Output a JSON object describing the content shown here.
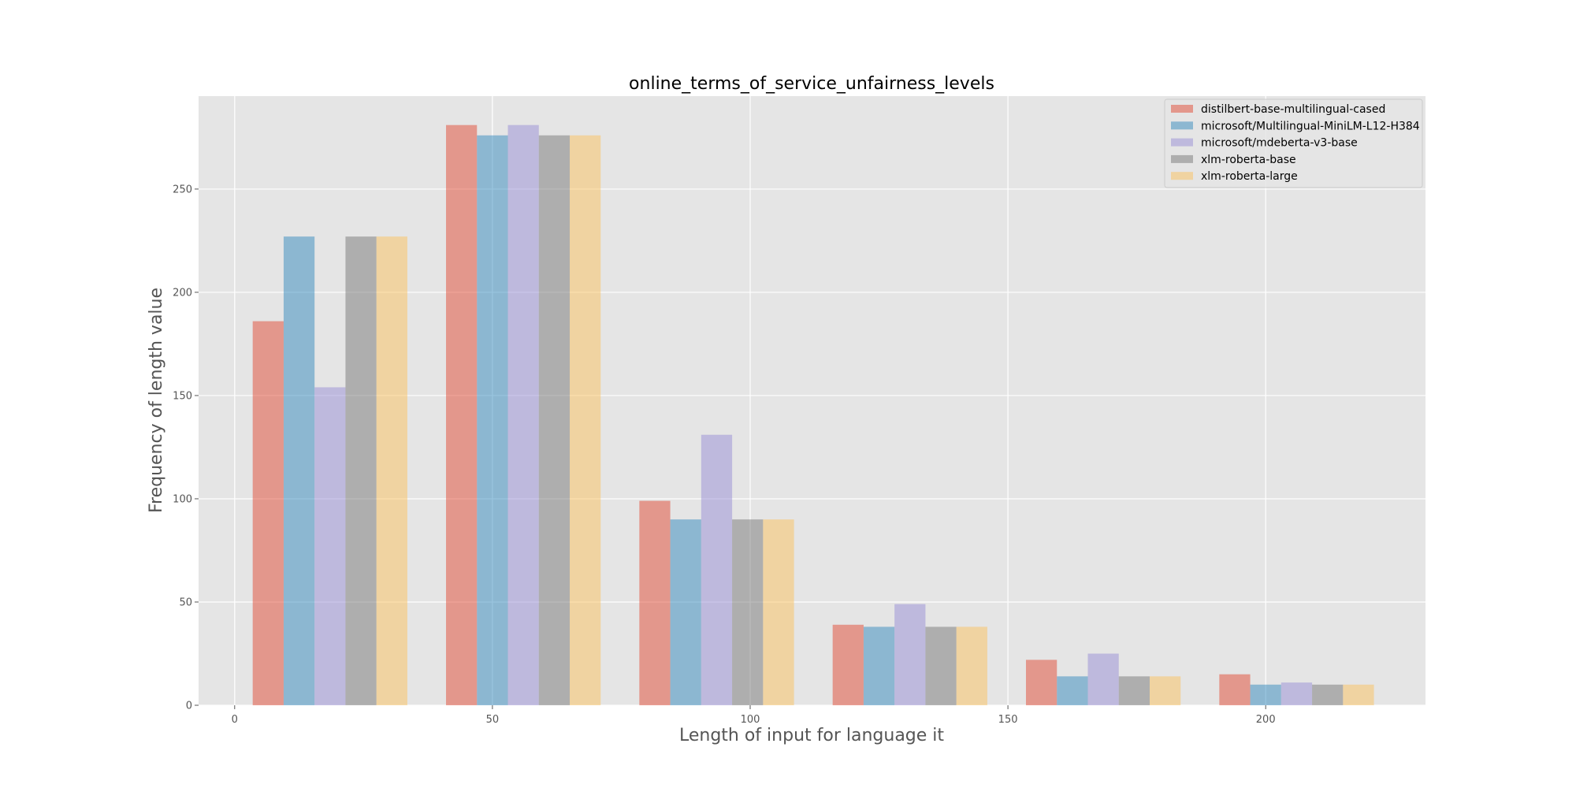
{
  "chart_data": {
    "type": "bar",
    "title": "online_terms_of_service_unfairness_levels",
    "xlabel": "Length of input for language it",
    "ylabel": "Frequency of length value",
    "xlim": [
      -7,
      231
    ],
    "ylim": [
      0,
      295
    ],
    "xticks": [
      0,
      50,
      100,
      150,
      200
    ],
    "yticks": [
      0,
      50,
      100,
      150,
      200,
      250
    ],
    "grid": true,
    "legend_position": "top-right",
    "bin_starts": [
      3.5,
      41,
      78.5,
      116,
      153.5,
      191
    ],
    "bin_width": 30,
    "series": [
      {
        "name": "distilbert-base-multilingual-cased",
        "color": "#E24A33",
        "values": [
          186,
          281,
          99,
          39,
          22,
          15
        ]
      },
      {
        "name": "microsoft/Multilingual-MiniLM-L12-H384",
        "color": "#348ABD",
        "values": [
          227,
          276,
          90,
          38,
          14,
          10
        ]
      },
      {
        "name": "microsoft/mdeberta-v3-base",
        "color": "#988ED5",
        "values": [
          154,
          281,
          131,
          49,
          25,
          11
        ]
      },
      {
        "name": "xlm-roberta-base",
        "color": "#777777",
        "values": [
          227,
          276,
          90,
          38,
          14,
          10
        ]
      },
      {
        "name": "xlm-roberta-large",
        "color": "#FBC15E",
        "values": [
          227,
          276,
          90,
          38,
          14,
          10
        ]
      }
    ]
  }
}
